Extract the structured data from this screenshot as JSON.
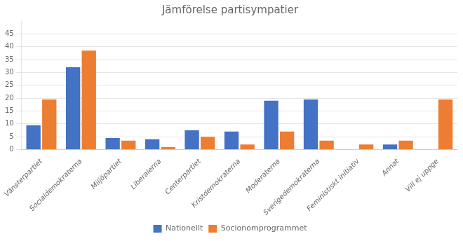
{
  "chart_data": {
    "type": "bar",
    "title": "Jämförelse partisympatier",
    "categories": [
      "Vänsterpartiet",
      "Socialdemokraterna",
      "Miljöpartiet",
      "Liberalerna",
      "Centerpartiet",
      "Kristdemokraterna",
      "Moderaterna",
      "Sverigedemokraterna",
      "Feministiskt initiativ",
      "Annat",
      "Vill ej uppge"
    ],
    "series": [
      {
        "name": "Nationellt",
        "color": "#4472C4",
        "values": [
          9.5,
          32,
          4.5,
          4,
          7.5,
          7,
          19,
          19.5,
          0,
          2,
          0
        ]
      },
      {
        "name": "Socionomprogrammet",
        "color": "#ED7D31",
        "values": [
          19.5,
          38.5,
          3.5,
          1,
          5,
          2,
          7,
          3.5,
          2,
          3.5,
          19.5
        ]
      }
    ],
    "ylim": [
      0,
      50
    ],
    "yticks": [
      0,
      5,
      10,
      15,
      20,
      25,
      30,
      35,
      40,
      45
    ],
    "grid": true,
    "legend": "bottom"
  }
}
